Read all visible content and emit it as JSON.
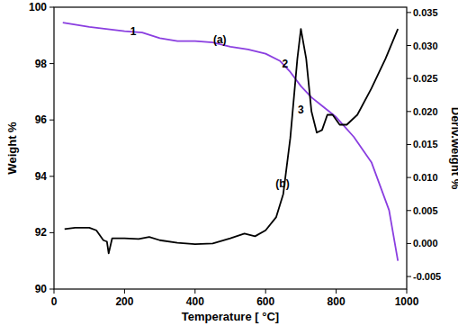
{
  "chart_data": {
    "type": "line",
    "x_label": "Temperature [ °C]",
    "y_label": "Weight %",
    "y2_label": "Deriv.weight %",
    "xlim": [
      0,
      1000
    ],
    "xticks": [
      0,
      200,
      400,
      600,
      800,
      1000
    ],
    "ylim": [
      90,
      100
    ],
    "yticks": [
      90,
      92,
      94,
      96,
      98,
      100
    ],
    "y2lim": [
      -0.0069,
      0.0358
    ],
    "y2ticks": [
      -0.005,
      {
        "value": 0,
        "label": "0.000"
      },
      0.005,
      {
        "value": 0.01,
        "label": "0.010"
      },
      0.015,
      {
        "value": 0.02,
        "label": "0.020"
      },
      0.025,
      {
        "value": 0.03,
        "label": "0.030"
      },
      0.035
    ],
    "grid": false,
    "series": [
      {
        "name": "(a)",
        "color": "#8a3ee0",
        "axis": "y",
        "x": [
          25,
          100,
          200,
          250,
          300,
          350,
          400,
          450,
          500,
          550,
          600,
          640,
          670,
          700,
          730,
          760,
          800,
          850,
          900,
          950,
          975
        ],
        "values": [
          99.45,
          99.3,
          99.15,
          99.1,
          98.9,
          98.8,
          98.8,
          98.75,
          98.6,
          98.5,
          98.35,
          98.1,
          97.7,
          97.2,
          96.8,
          96.5,
          96.1,
          95.4,
          94.5,
          92.8,
          91.0
        ]
      },
      {
        "name": "(b)",
        "color": "#000000",
        "axis": "y2",
        "x": [
          30,
          60,
          100,
          120,
          140,
          150,
          155,
          165,
          200,
          240,
          270,
          300,
          350,
          400,
          450,
          500,
          540,
          570,
          600,
          630,
          650,
          670,
          690,
          700,
          715,
          730,
          745,
          760,
          775,
          790,
          810,
          830,
          860,
          900,
          940,
          975
        ],
        "values": [
          0.0022,
          0.0024,
          0.0024,
          0.002,
          0.0005,
          0.0003,
          -0.0015,
          0.0008,
          0.0008,
          0.0007,
          0.001,
          0.0005,
          0.0001,
          -0.0001,
          0.0,
          0.0008,
          0.0015,
          0.0011,
          0.002,
          0.004,
          0.0075,
          0.016,
          0.028,
          0.0325,
          0.028,
          0.02,
          0.0168,
          0.0172,
          0.0195,
          0.0195,
          0.018,
          0.018,
          0.0195,
          0.0235,
          0.028,
          0.0325
        ]
      }
    ],
    "annotations": [
      {
        "text": "1",
        "x": 225,
        "y": 99.15
      },
      {
        "text": "(a)",
        "x": 470,
        "y": 98.85
      },
      {
        "text": "2",
        "x": 655,
        "y": 98.0
      },
      {
        "text": "3",
        "x": 700,
        "y": 96.35
      },
      {
        "text": "(b)",
        "x": 648,
        "y": 93.75
      }
    ]
  }
}
